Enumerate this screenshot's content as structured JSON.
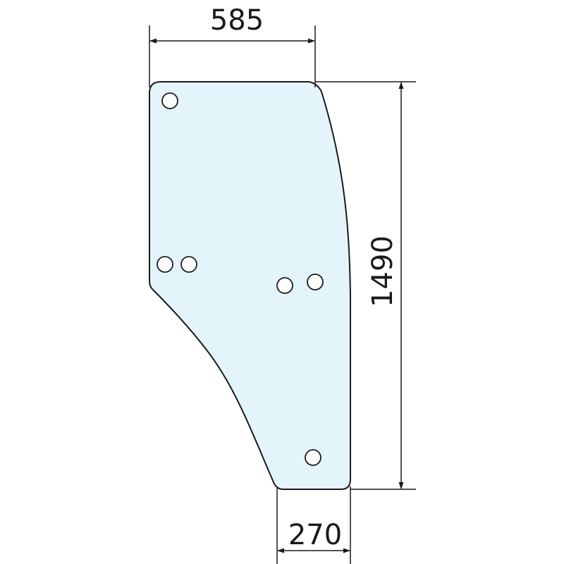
{
  "drawing": {
    "glass_fill": "#e3f4fb",
    "line_color": "#1a1a1a",
    "dimensions": {
      "top_width": "585",
      "height": "1490",
      "bottom_width": "270"
    },
    "holes_count": 6
  }
}
